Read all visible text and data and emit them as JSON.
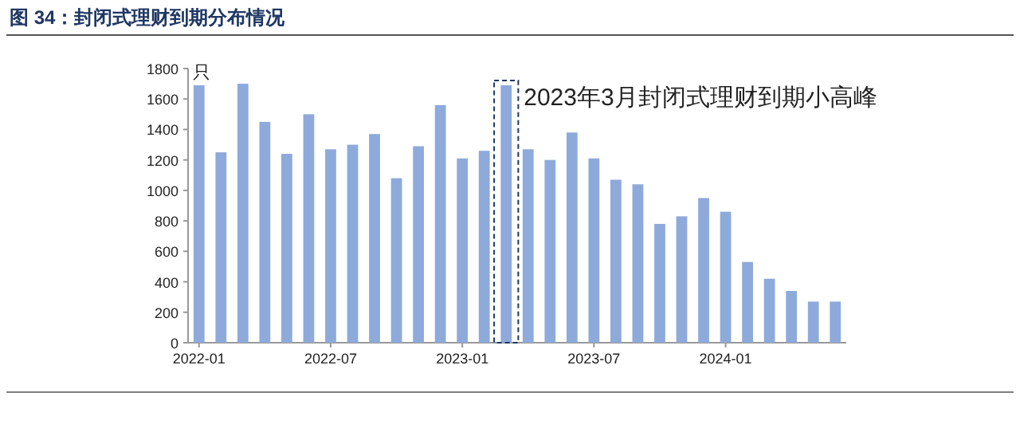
{
  "chart_data": {
    "type": "bar",
    "title": "图 34：封闭式理财到期分布情况",
    "ylabel": "只",
    "annotations": [
      "2023年3月封闭式理财到期小高峰"
    ],
    "categories": [
      "2022-01",
      null,
      null,
      null,
      null,
      null,
      "2022-07",
      null,
      null,
      null,
      null,
      null,
      "2023-01",
      null,
      null,
      null,
      null,
      null,
      "2023-07",
      null,
      null,
      null,
      null,
      null,
      "2024-01",
      null,
      null,
      null,
      null,
      null
    ],
    "values": [
      1690,
      1250,
      1700,
      1450,
      1240,
      1500,
      1270,
      1300,
      1370,
      1080,
      1290,
      1560,
      1210,
      1260,
      1690,
      1270,
      1200,
      1380,
      1210,
      1070,
      1040,
      780,
      830,
      950,
      860,
      530,
      420,
      340,
      270,
      270
    ],
    "color": "#8eaadb",
    "ylim": [
      0,
      1800
    ],
    "yticks": [
      0,
      200,
      400,
      600,
      800,
      1000,
      1200,
      1400,
      1600,
      1800
    ],
    "grid": false
  }
}
